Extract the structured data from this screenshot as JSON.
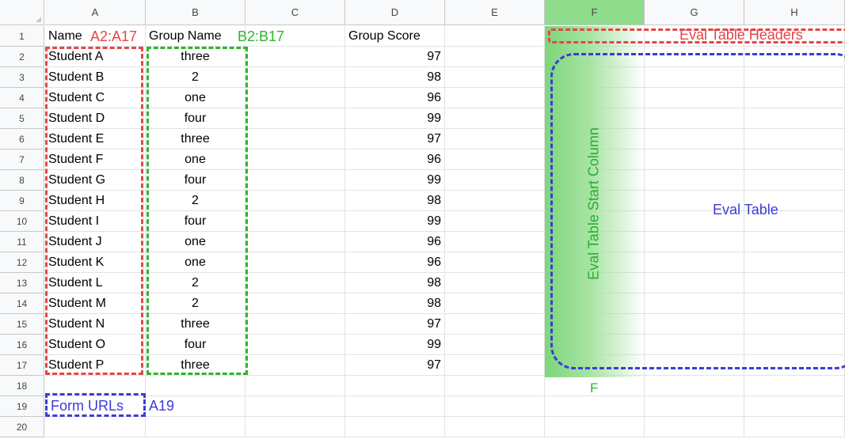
{
  "columns": [
    "A",
    "B",
    "C",
    "D",
    "E",
    "F",
    "G",
    "H"
  ],
  "rows": [
    "1",
    "2",
    "3",
    "4",
    "5",
    "6",
    "7",
    "8",
    "9",
    "10",
    "11",
    "12",
    "13",
    "14",
    "15",
    "16",
    "17",
    "18",
    "19",
    "20"
  ],
  "sheet": {
    "headers": {
      "name": "Name",
      "group_name": "Group Name",
      "group_score": "Group Score"
    },
    "students": [
      {
        "name": "Student A",
        "group": "three",
        "score": "97"
      },
      {
        "name": "Student B",
        "group": "2",
        "score": "98"
      },
      {
        "name": "Student C",
        "group": "one",
        "score": "96"
      },
      {
        "name": "Student D",
        "group": "four",
        "score": "99"
      },
      {
        "name": "Student E",
        "group": "three",
        "score": "97"
      },
      {
        "name": "Student F",
        "group": "one",
        "score": "96"
      },
      {
        "name": "Student G",
        "group": "four",
        "score": "99"
      },
      {
        "name": "Student H",
        "group": "2",
        "score": "98"
      },
      {
        "name": "Student I",
        "group": "four",
        "score": "99"
      },
      {
        "name": "Student J",
        "group": "one",
        "score": "96"
      },
      {
        "name": "Student K",
        "group": "one",
        "score": "96"
      },
      {
        "name": "Student L",
        "group": "2",
        "score": "98"
      },
      {
        "name": "Student M",
        "group": "2",
        "score": "98"
      },
      {
        "name": "Student N",
        "group": "three",
        "score": "97"
      },
      {
        "name": "Student O",
        "group": "four",
        "score": "99"
      },
      {
        "name": "Student P",
        "group": "three",
        "score": "97"
      }
    ]
  },
  "annotations": {
    "names_range": "A2:A17",
    "groups_range": "B2:B17",
    "eval_headers": "Eval Table Headers",
    "eval_table": "Eval Table",
    "eval_start_column": "Eval Table Start Column",
    "eval_start_column_letter": "F",
    "form_urls": "Form URLs",
    "form_urls_cell": "A19"
  },
  "colors": {
    "red": "#e84545",
    "green": "#2cb52f",
    "blue": "#3b3bd9",
    "highlight_green": "#7dd67a"
  }
}
